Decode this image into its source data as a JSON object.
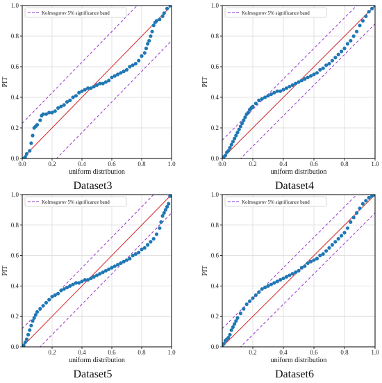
{
  "chart_data": [
    {
      "type": "scatter",
      "caption": "Dataset3",
      "xlabel": "uniform distribution",
      "ylabel": "PIT",
      "xlim": [
        0,
        1
      ],
      "ylim": [
        0,
        1
      ],
      "xticks": [
        "0.0",
        "0.2",
        "0.4",
        "0.6",
        "0.8",
        "1.0"
      ],
      "yticks": [
        "0.0",
        "0.2",
        "0.4",
        "0.6",
        "0.8",
        "1.0"
      ],
      "grid": true,
      "legend": {
        "position": "top-left",
        "entries": [
          "Kolmogorov 5% significance band"
        ]
      },
      "band_offset": 0.23,
      "colors": {
        "points": "#1f77b4",
        "diagonal": "#d62728",
        "band": "#9932cc"
      },
      "points": [
        [
          0.01,
          0.0
        ],
        [
          0.02,
          0.01
        ],
        [
          0.03,
          0.03
        ],
        [
          0.05,
          0.05
        ],
        [
          0.06,
          0.1
        ],
        [
          0.07,
          0.15
        ],
        [
          0.08,
          0.2
        ],
        [
          0.09,
          0.21
        ],
        [
          0.1,
          0.22
        ],
        [
          0.12,
          0.25
        ],
        [
          0.13,
          0.28
        ],
        [
          0.14,
          0.29
        ],
        [
          0.16,
          0.29
        ],
        [
          0.18,
          0.3
        ],
        [
          0.2,
          0.3
        ],
        [
          0.22,
          0.31
        ],
        [
          0.24,
          0.33
        ],
        [
          0.26,
          0.34
        ],
        [
          0.28,
          0.35
        ],
        [
          0.3,
          0.37
        ],
        [
          0.32,
          0.38
        ],
        [
          0.34,
          0.4
        ],
        [
          0.36,
          0.41
        ],
        [
          0.38,
          0.43
        ],
        [
          0.4,
          0.44
        ],
        [
          0.42,
          0.45
        ],
        [
          0.44,
          0.46
        ],
        [
          0.46,
          0.46
        ],
        [
          0.48,
          0.47
        ],
        [
          0.5,
          0.48
        ],
        [
          0.52,
          0.49
        ],
        [
          0.54,
          0.49
        ],
        [
          0.56,
          0.5
        ],
        [
          0.58,
          0.51
        ],
        [
          0.6,
          0.53
        ],
        [
          0.62,
          0.54
        ],
        [
          0.64,
          0.55
        ],
        [
          0.66,
          0.56
        ],
        [
          0.68,
          0.57
        ],
        [
          0.7,
          0.58
        ],
        [
          0.72,
          0.6
        ],
        [
          0.74,
          0.61
        ],
        [
          0.76,
          0.62
        ],
        [
          0.78,
          0.64
        ],
        [
          0.8,
          0.67
        ],
        [
          0.82,
          0.69
        ],
        [
          0.83,
          0.72
        ],
        [
          0.84,
          0.75
        ],
        [
          0.85,
          0.77
        ],
        [
          0.86,
          0.8
        ],
        [
          0.87,
          0.83
        ],
        [
          0.88,
          0.87
        ],
        [
          0.89,
          0.89
        ],
        [
          0.9,
          0.9
        ],
        [
          0.92,
          0.91
        ],
        [
          0.94,
          0.93
        ],
        [
          0.95,
          0.95
        ],
        [
          0.97,
          0.98
        ],
        [
          0.99,
          1.0
        ]
      ]
    },
    {
      "type": "scatter",
      "caption": "Dataset4",
      "xlabel": "uniform distribution",
      "ylabel": "PIT",
      "xlim": [
        0,
        1
      ],
      "ylim": [
        0,
        1
      ],
      "xticks": [
        "0.0",
        "0.2",
        "0.4",
        "0.6",
        "0.8",
        "1.0"
      ],
      "yticks": [
        "0.0",
        "0.2",
        "0.4",
        "0.6",
        "0.8",
        "1.0"
      ],
      "grid": true,
      "legend": {
        "position": "top-left",
        "entries": [
          "Kolmogorov 5% significance band"
        ]
      },
      "band_offset": 0.12,
      "colors": {
        "points": "#1f77b4",
        "diagonal": "#d62728",
        "band": "#9932cc"
      },
      "points": [
        [
          0.0,
          0.0
        ],
        [
          0.01,
          0.01
        ],
        [
          0.02,
          0.02
        ],
        [
          0.03,
          0.04
        ],
        [
          0.04,
          0.05
        ],
        [
          0.05,
          0.07
        ],
        [
          0.06,
          0.09
        ],
        [
          0.07,
          0.11
        ],
        [
          0.08,
          0.13
        ],
        [
          0.09,
          0.15
        ],
        [
          0.1,
          0.17
        ],
        [
          0.11,
          0.19
        ],
        [
          0.12,
          0.21
        ],
        [
          0.13,
          0.23
        ],
        [
          0.14,
          0.25
        ],
        [
          0.15,
          0.27
        ],
        [
          0.16,
          0.29
        ],
        [
          0.17,
          0.3
        ],
        [
          0.18,
          0.32
        ],
        [
          0.19,
          0.33
        ],
        [
          0.2,
          0.34
        ],
        [
          0.22,
          0.36
        ],
        [
          0.24,
          0.38
        ],
        [
          0.26,
          0.39
        ],
        [
          0.28,
          0.4
        ],
        [
          0.3,
          0.41
        ],
        [
          0.32,
          0.42
        ],
        [
          0.34,
          0.43
        ],
        [
          0.36,
          0.44
        ],
        [
          0.38,
          0.44
        ],
        [
          0.4,
          0.45
        ],
        [
          0.42,
          0.46
        ],
        [
          0.44,
          0.47
        ],
        [
          0.46,
          0.48
        ],
        [
          0.48,
          0.49
        ],
        [
          0.5,
          0.5
        ],
        [
          0.52,
          0.51
        ],
        [
          0.54,
          0.52
        ],
        [
          0.56,
          0.53
        ],
        [
          0.58,
          0.54
        ],
        [
          0.6,
          0.55
        ],
        [
          0.62,
          0.56
        ],
        [
          0.64,
          0.58
        ],
        [
          0.66,
          0.59
        ],
        [
          0.68,
          0.61
        ],
        [
          0.7,
          0.62
        ],
        [
          0.72,
          0.64
        ],
        [
          0.74,
          0.66
        ],
        [
          0.76,
          0.68
        ],
        [
          0.78,
          0.7
        ],
        [
          0.8,
          0.72
        ],
        [
          0.82,
          0.75
        ],
        [
          0.84,
          0.77
        ],
        [
          0.86,
          0.8
        ],
        [
          0.88,
          0.83
        ],
        [
          0.9,
          0.87
        ],
        [
          0.92,
          0.9
        ],
        [
          0.94,
          0.93
        ],
        [
          0.96,
          0.96
        ],
        [
          0.98,
          0.98
        ],
        [
          1.0,
          1.0
        ]
      ]
    },
    {
      "type": "scatter",
      "caption": "Dataset5",
      "xlabel": "uniform distribution",
      "ylabel": "PIT",
      "xlim": [
        0,
        1
      ],
      "ylim": [
        0,
        1
      ],
      "xticks": [
        "0.2",
        "0.4",
        "0.6",
        "0.8",
        "1.0"
      ],
      "yticks": [
        "0.0",
        "0.2",
        "0.4",
        "0.6",
        "0.8",
        "1.0"
      ],
      "grid": true,
      "legend": {
        "position": "top-left",
        "entries": [
          "Kolmogorov 5% significance band"
        ]
      },
      "band_offset": 0.12,
      "colors": {
        "points": "#1f77b4",
        "diagonal": "#d62728",
        "band": "#9932cc"
      },
      "points": [
        [
          0.0,
          0.0
        ],
        [
          0.01,
          0.01
        ],
        [
          0.02,
          0.03
        ],
        [
          0.03,
          0.05
        ],
        [
          0.04,
          0.08
        ],
        [
          0.05,
          0.11
        ],
        [
          0.06,
          0.14
        ],
        [
          0.07,
          0.17
        ],
        [
          0.08,
          0.19
        ],
        [
          0.09,
          0.21
        ],
        [
          0.1,
          0.23
        ],
        [
          0.12,
          0.25
        ],
        [
          0.14,
          0.27
        ],
        [
          0.16,
          0.29
        ],
        [
          0.18,
          0.31
        ],
        [
          0.2,
          0.33
        ],
        [
          0.22,
          0.34
        ],
        [
          0.24,
          0.35
        ],
        [
          0.26,
          0.37
        ],
        [
          0.28,
          0.38
        ],
        [
          0.3,
          0.39
        ],
        [
          0.32,
          0.4
        ],
        [
          0.34,
          0.41
        ],
        [
          0.36,
          0.42
        ],
        [
          0.38,
          0.42
        ],
        [
          0.4,
          0.43
        ],
        [
          0.42,
          0.44
        ],
        [
          0.44,
          0.44
        ],
        [
          0.46,
          0.45
        ],
        [
          0.48,
          0.46
        ],
        [
          0.5,
          0.47
        ],
        [
          0.52,
          0.48
        ],
        [
          0.54,
          0.49
        ],
        [
          0.56,
          0.5
        ],
        [
          0.58,
          0.51
        ],
        [
          0.6,
          0.52
        ],
        [
          0.62,
          0.53
        ],
        [
          0.64,
          0.54
        ],
        [
          0.66,
          0.55
        ],
        [
          0.68,
          0.56
        ],
        [
          0.7,
          0.57
        ],
        [
          0.72,
          0.58
        ],
        [
          0.74,
          0.6
        ],
        [
          0.76,
          0.61
        ],
        [
          0.78,
          0.62
        ],
        [
          0.8,
          0.64
        ],
        [
          0.82,
          0.65
        ],
        [
          0.84,
          0.67
        ],
        [
          0.86,
          0.69
        ],
        [
          0.88,
          0.71
        ],
        [
          0.9,
          0.74
        ],
        [
          0.92,
          0.78
        ],
        [
          0.93,
          0.82
        ],
        [
          0.94,
          0.86
        ],
        [
          0.95,
          0.88
        ],
        [
          0.96,
          0.9
        ],
        [
          0.97,
          0.92
        ],
        [
          0.98,
          0.94
        ],
        [
          0.99,
          0.99
        ],
        [
          1.0,
          1.0
        ]
      ]
    },
    {
      "type": "scatter",
      "caption": "Dataset6",
      "xlabel": "uniform distribution",
      "ylabel": "PIT",
      "xlim": [
        0,
        1
      ],
      "ylim": [
        0,
        1
      ],
      "xticks": [
        "0.2",
        "0.4",
        "0.6",
        "0.8",
        "1.0"
      ],
      "yticks": [
        "0.0",
        "0.2",
        "0.4",
        "0.6",
        "0.8",
        "1.0"
      ],
      "grid": true,
      "legend": {
        "position": "top-left",
        "entries": [
          "Kolmogorov 5% significance band"
        ]
      },
      "band_offset": 0.12,
      "colors": {
        "points": "#1f77b4",
        "diagonal": "#d62728",
        "band": "#9932cc"
      },
      "points": [
        [
          0.0,
          0.0
        ],
        [
          0.01,
          0.02
        ],
        [
          0.02,
          0.04
        ],
        [
          0.03,
          0.05
        ],
        [
          0.04,
          0.06
        ],
        [
          0.05,
          0.08
        ],
        [
          0.06,
          0.11
        ],
        [
          0.07,
          0.13
        ],
        [
          0.08,
          0.15
        ],
        [
          0.09,
          0.17
        ],
        [
          0.1,
          0.19
        ],
        [
          0.12,
          0.22
        ],
        [
          0.14,
          0.25
        ],
        [
          0.16,
          0.28
        ],
        [
          0.18,
          0.3
        ],
        [
          0.2,
          0.32
        ],
        [
          0.22,
          0.34
        ],
        [
          0.24,
          0.36
        ],
        [
          0.26,
          0.38
        ],
        [
          0.28,
          0.39
        ],
        [
          0.3,
          0.4
        ],
        [
          0.32,
          0.41
        ],
        [
          0.34,
          0.42
        ],
        [
          0.36,
          0.43
        ],
        [
          0.38,
          0.44
        ],
        [
          0.4,
          0.45
        ],
        [
          0.42,
          0.46
        ],
        [
          0.44,
          0.47
        ],
        [
          0.46,
          0.48
        ],
        [
          0.48,
          0.49
        ],
        [
          0.5,
          0.5
        ],
        [
          0.52,
          0.52
        ],
        [
          0.54,
          0.53
        ],
        [
          0.56,
          0.55
        ],
        [
          0.58,
          0.56
        ],
        [
          0.6,
          0.57
        ],
        [
          0.62,
          0.58
        ],
        [
          0.64,
          0.6
        ],
        [
          0.66,
          0.61
        ],
        [
          0.68,
          0.63
        ],
        [
          0.7,
          0.65
        ],
        [
          0.72,
          0.67
        ],
        [
          0.74,
          0.69
        ],
        [
          0.76,
          0.71
        ],
        [
          0.78,
          0.73
        ],
        [
          0.8,
          0.75
        ],
        [
          0.82,
          0.78
        ],
        [
          0.84,
          0.82
        ],
        [
          0.86,
          0.85
        ],
        [
          0.88,
          0.88
        ],
        [
          0.9,
          0.91
        ],
        [
          0.92,
          0.94
        ],
        [
          0.94,
          0.96
        ],
        [
          0.96,
          0.98
        ],
        [
          0.98,
          0.99
        ],
        [
          1.0,
          1.0
        ]
      ]
    }
  ]
}
